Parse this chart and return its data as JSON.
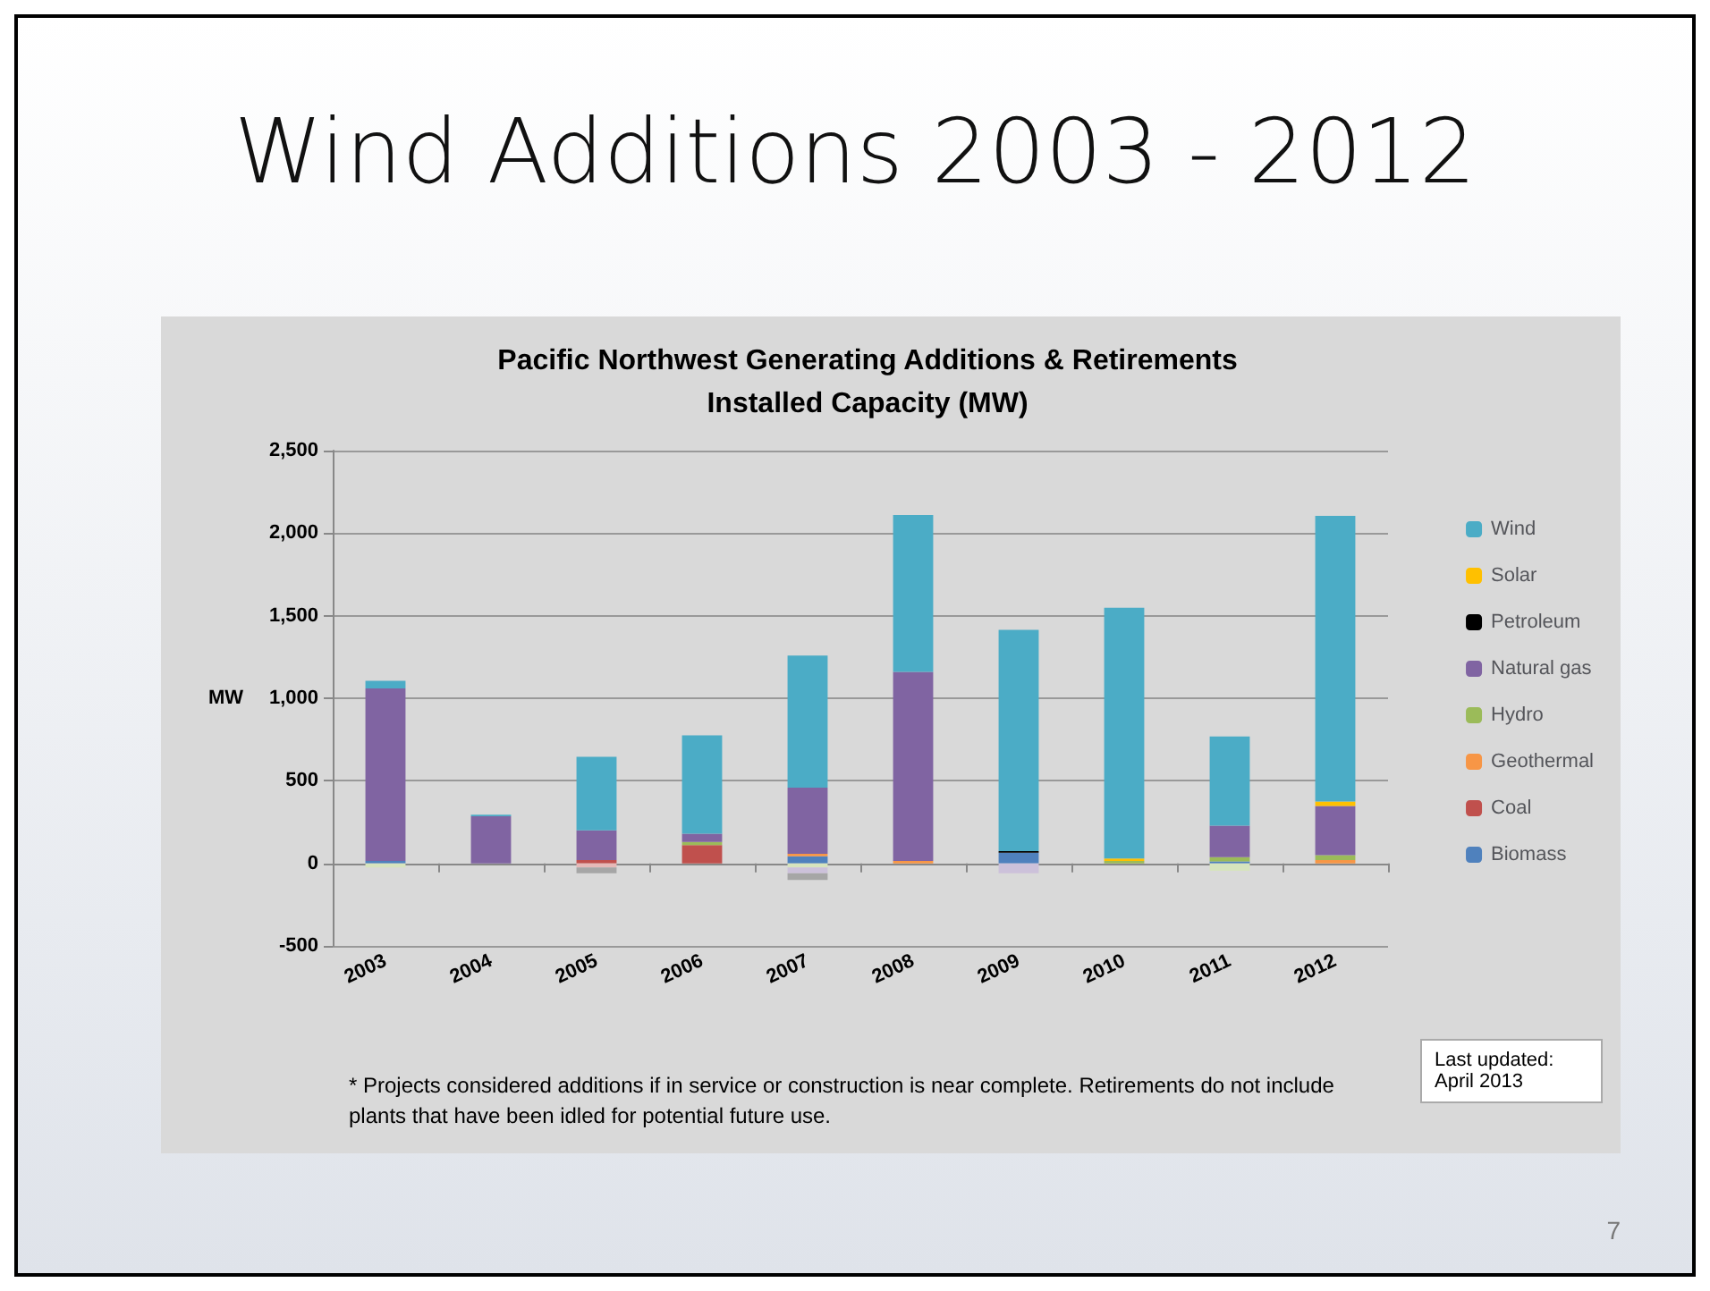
{
  "chart_data": {
    "type": "bar",
    "stacked": true,
    "title": "Wind Additions 2003 - 2012",
    "subtitle": "Pacific Northwest Generating Additions & Retirements\nInstalled Capacity (MW)",
    "ylabel": "MW",
    "categories": [
      "2003",
      "2004",
      "2005",
      "2006",
      "2007",
      "2008",
      "2009",
      "2010",
      "2011",
      "2012"
    ],
    "series": [
      {
        "name": "Biomass",
        "color": "#4f81bd",
        "values": [
          15,
          0,
          0,
          0,
          43,
          0,
          64,
          0,
          12,
          0
        ]
      },
      {
        "name": "Coal",
        "color": "#c0504d",
        "values": [
          0,
          0,
          20,
          110,
          0,
          0,
          0,
          0,
          0,
          0
        ]
      },
      {
        "name": "Geothermal",
        "color": "#f79646",
        "values": [
          0,
          0,
          0,
          0,
          15,
          15,
          0,
          0,
          0,
          20
        ]
      },
      {
        "name": "Hydro",
        "color": "#9bbb59",
        "values": [
          0,
          0,
          0,
          20,
          0,
          0,
          0,
          15,
          25,
          30
        ]
      },
      {
        "name": "Natural gas",
        "color": "#8064a2",
        "values": [
          1045,
          285,
          180,
          50,
          400,
          1145,
          0,
          0,
          192,
          298
        ]
      },
      {
        "name": "Petroleum",
        "color": "#000000",
        "values": [
          0,
          0,
          0,
          0,
          0,
          0,
          10,
          0,
          0,
          0
        ]
      },
      {
        "name": "Solar",
        "color": "#ffc000",
        "values": [
          0,
          0,
          0,
          0,
          0,
          0,
          0,
          15,
          0,
          27
        ]
      },
      {
        "name": "Wind",
        "color": "#4bacc6",
        "values": [
          45,
          10,
          445,
          595,
          800,
          950,
          1340,
          1518,
          539,
          1730
        ]
      },
      {
        "color": "#d7e4bd",
        "values": [
          -25,
          0,
          0,
          0,
          -25,
          0,
          0,
          0,
          -45,
          null
        ]
      },
      {
        "color": "#e6b9b8",
        "values": [
          0,
          0,
          -25,
          0,
          0,
          0,
          0,
          0,
          0,
          0
        ]
      },
      {
        "color": "#ccc1da",
        "values": [
          0,
          0,
          0,
          0,
          -35,
          0,
          -60,
          0,
          0,
          0
        ]
      },
      {
        "color": "#a6a6a6",
        "values": [
          null,
          0,
          -35,
          null,
          -40,
          0,
          0,
          0,
          0,
          0
        ]
      }
    ],
    "ylim": [
      -500,
      2500
    ],
    "yticks": [
      {
        "value": -500,
        "label": "-500"
      },
      0,
      {
        "value": 500,
        "label": "500"
      },
      {
        "value": 1000,
        "label": "1,000"
      },
      {
        "value": 1500,
        "label": "1,500"
      },
      {
        "value": 2000,
        "label": "2,000"
      },
      {
        "value": 2500,
        "label": "2,500"
      }
    ],
    "grid": "y",
    "legend": "right",
    "annotations": [
      "* Projects considered additions if in service or construction is near complete.  Retirements do not include plants that have been idled for potential future use.",
      "Last updated:\nApril 2013",
      "7"
    ]
  }
}
